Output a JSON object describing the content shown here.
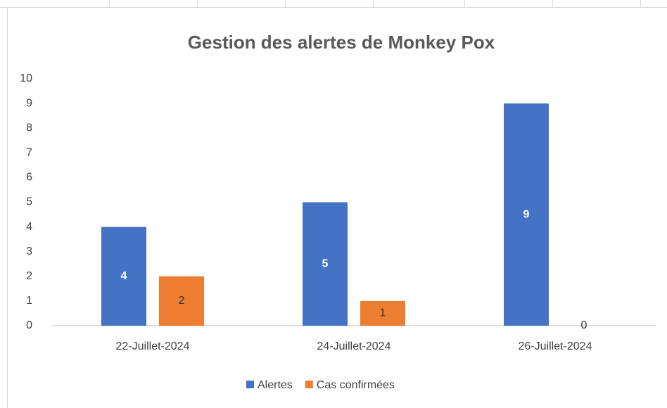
{
  "chart_data": {
    "type": "bar",
    "title": "Gestion des alertes de Monkey Pox",
    "categories": [
      "22-Juillet-2024",
      "24-Juillet-2024",
      "26-Juillet-2024"
    ],
    "series": [
      {
        "name": "Alertes",
        "color": "#4472c4",
        "values": [
          4,
          5,
          9
        ]
      },
      {
        "name": "Cas confirmées",
        "color": "#ed7d31",
        "values": [
          2,
          1,
          0
        ]
      }
    ],
    "ylim": [
      0,
      10
    ],
    "yticks": [
      0,
      1,
      2,
      3,
      4,
      5,
      6,
      7,
      8,
      9,
      10
    ],
    "grid": false,
    "legend": "bottom"
  }
}
